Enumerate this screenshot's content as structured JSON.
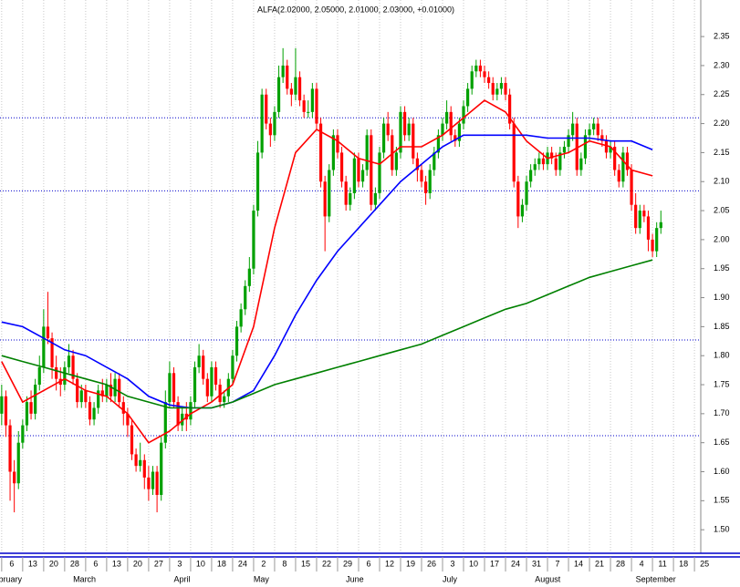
{
  "chart_data": {
    "type": "candlestick",
    "title": "ALFA(2.02000, 2.05000, 2.01000, 2.03000, +0.01000)",
    "up_color": "#00a000",
    "down_color": "#ff0000",
    "grid": true,
    "ylim": [
      1.461,
      2.413
    ],
    "xlim": [
      -0.4,
      166.5
    ],
    "yticks": [
      {
        "value": 1.5,
        "label": "1.50"
      },
      {
        "value": 1.55,
        "label": "1.55"
      },
      {
        "value": 1.6,
        "label": "1.60"
      },
      {
        "value": 1.65,
        "label": "1.65"
      },
      {
        "value": 1.7,
        "label": "1.70"
      },
      {
        "value": 1.75,
        "label": "1.75"
      },
      {
        "value": 1.8,
        "label": "1.80"
      },
      {
        "value": 1.85,
        "label": "1.85"
      },
      {
        "value": 1.9,
        "label": "1.90"
      },
      {
        "value": 1.95,
        "label": "1.95"
      },
      {
        "value": 2.0,
        "label": "2.00"
      },
      {
        "value": 2.05,
        "label": "2.05"
      },
      {
        "value": 2.1,
        "label": "2.10"
      },
      {
        "value": 2.15,
        "label": "2.15"
      },
      {
        "value": 2.2,
        "label": "2.20"
      },
      {
        "value": 2.25,
        "label": "2.25"
      },
      {
        "value": 2.3,
        "label": "2.30"
      },
      {
        "value": 2.35,
        "label": "2.35"
      }
    ],
    "xticks": [
      {
        "value": 0,
        "label": "6"
      },
      {
        "value": 5,
        "label": "13"
      },
      {
        "value": 10,
        "label": "20"
      },
      {
        "value": 15,
        "label": "28"
      },
      {
        "value": 20,
        "label": "6"
      },
      {
        "value": 25,
        "label": "13"
      },
      {
        "value": 30,
        "label": "20"
      },
      {
        "value": 35,
        "label": "27"
      },
      {
        "value": 40,
        "label": "3"
      },
      {
        "value": 45,
        "label": "10"
      },
      {
        "value": 50,
        "label": "18"
      },
      {
        "value": 55,
        "label": "24"
      },
      {
        "value": 60,
        "label": "2"
      },
      {
        "value": 65,
        "label": "8"
      },
      {
        "value": 70,
        "label": "15"
      },
      {
        "value": 75,
        "label": "22"
      },
      {
        "value": 80,
        "label": "29"
      },
      {
        "value": 85,
        "label": "6"
      },
      {
        "value": 90,
        "label": "12"
      },
      {
        "value": 95,
        "label": "19"
      },
      {
        "value": 100,
        "label": "26"
      },
      {
        "value": 105,
        "label": "3"
      },
      {
        "value": 110,
        "label": "10"
      },
      {
        "value": 115,
        "label": "17"
      },
      {
        "value": 120,
        "label": "24"
      },
      {
        "value": 125,
        "label": "31"
      },
      {
        "value": 130,
        "label": "7"
      },
      {
        "value": 135,
        "label": "14"
      },
      {
        "value": 140,
        "label": "21"
      },
      {
        "value": 145,
        "label": "28"
      },
      {
        "value": 150,
        "label": "4"
      },
      {
        "value": 155,
        "label": "11"
      },
      {
        "value": 160,
        "label": "18"
      },
      {
        "value": 165,
        "label": "25"
      }
    ],
    "month_labels": [
      {
        "value": -3,
        "label": "February"
      },
      {
        "value": 17,
        "label": "March"
      },
      {
        "value": 41,
        "label": "April"
      },
      {
        "value": 60,
        "label": "May"
      },
      {
        "value": 82,
        "label": "June"
      },
      {
        "value": 105,
        "label": "July"
      },
      {
        "value": 127,
        "label": "August"
      },
      {
        "value": 151,
        "label": "September"
      }
    ],
    "levels": {
      "color": "#0000cc",
      "values": [
        2.21,
        2.084,
        1.827,
        1.662
      ]
    },
    "candles": [
      [
        1.7,
        1.75,
        1.68,
        1.73
      ],
      [
        1.73,
        1.74,
        1.66,
        1.68
      ],
      [
        1.68,
        1.69,
        1.55,
        1.6
      ],
      [
        1.6,
        1.62,
        1.53,
        1.58
      ],
      [
        1.58,
        1.67,
        1.57,
        1.65
      ],
      [
        1.65,
        1.69,
        1.64,
        1.68
      ],
      [
        1.68,
        1.73,
        1.67,
        1.72
      ],
      [
        1.72,
        1.74,
        1.69,
        1.7
      ],
      [
        1.7,
        1.76,
        1.69,
        1.75
      ],
      [
        1.75,
        1.8,
        1.74,
        1.78
      ],
      [
        1.78,
        1.88,
        1.77,
        1.85
      ],
      [
        1.85,
        1.91,
        1.82,
        1.83
      ],
      [
        1.83,
        1.84,
        1.76,
        1.78
      ],
      [
        1.78,
        1.8,
        1.74,
        1.76
      ],
      [
        1.76,
        1.78,
        1.73,
        1.75
      ],
      [
        1.75,
        1.79,
        1.74,
        1.78
      ],
      [
        1.78,
        1.82,
        1.77,
        1.8
      ],
      [
        1.8,
        1.81,
        1.75,
        1.76
      ],
      [
        1.76,
        1.77,
        1.71,
        1.72
      ],
      [
        1.72,
        1.75,
        1.71,
        1.74
      ],
      [
        1.74,
        1.75,
        1.71,
        1.72
      ],
      [
        1.72,
        1.73,
        1.68,
        1.69
      ],
      [
        1.69,
        1.72,
        1.68,
        1.71
      ],
      [
        1.71,
        1.75,
        1.7,
        1.74
      ],
      [
        1.74,
        1.76,
        1.72,
        1.73
      ],
      [
        1.73,
        1.76,
        1.72,
        1.75
      ],
      [
        1.75,
        1.77,
        1.72,
        1.73
      ],
      [
        1.73,
        1.77,
        1.72,
        1.76
      ],
      [
        1.76,
        1.77,
        1.71,
        1.72
      ],
      [
        1.72,
        1.73,
        1.68,
        1.7
      ],
      [
        1.7,
        1.71,
        1.66,
        1.68
      ],
      [
        1.68,
        1.69,
        1.62,
        1.63
      ],
      [
        1.63,
        1.64,
        1.6,
        1.61
      ],
      [
        1.61,
        1.65,
        1.6,
        1.62
      ],
      [
        1.62,
        1.63,
        1.57,
        1.59
      ],
      [
        1.59,
        1.61,
        1.55,
        1.57
      ],
      [
        1.57,
        1.61,
        1.56,
        1.6
      ],
      [
        1.6,
        1.61,
        1.53,
        1.56
      ],
      [
        1.56,
        1.66,
        1.55,
        1.65
      ],
      [
        1.65,
        1.74,
        1.64,
        1.72
      ],
      [
        1.72,
        1.79,
        1.71,
        1.77
      ],
      [
        1.77,
        1.78,
        1.71,
        1.72
      ],
      [
        1.72,
        1.73,
        1.67,
        1.68
      ],
      [
        1.68,
        1.71,
        1.67,
        1.7
      ],
      [
        1.7,
        1.72,
        1.67,
        1.69
      ],
      [
        1.69,
        1.73,
        1.68,
        1.72
      ],
      [
        1.72,
        1.79,
        1.71,
        1.78
      ],
      [
        1.78,
        1.82,
        1.77,
        1.8
      ],
      [
        1.8,
        1.81,
        1.75,
        1.76
      ],
      [
        1.76,
        1.77,
        1.72,
        1.73
      ],
      [
        1.73,
        1.79,
        1.72,
        1.78
      ],
      [
        1.78,
        1.79,
        1.74,
        1.75
      ],
      [
        1.75,
        1.76,
        1.71,
        1.72
      ],
      [
        1.72,
        1.74,
        1.71,
        1.73
      ],
      [
        1.73,
        1.77,
        1.72,
        1.76
      ],
      [
        1.76,
        1.81,
        1.75,
        1.8
      ],
      [
        1.8,
        1.86,
        1.79,
        1.85
      ],
      [
        1.85,
        1.89,
        1.84,
        1.88
      ],
      [
        1.88,
        1.93,
        1.87,
        1.92
      ],
      [
        1.92,
        1.97,
        1.91,
        1.95
      ],
      [
        1.95,
        2.06,
        1.94,
        2.05
      ],
      [
        2.05,
        2.17,
        2.04,
        2.15
      ],
      [
        2.15,
        2.26,
        2.14,
        2.25
      ],
      [
        2.25,
        2.26,
        2.19,
        2.2
      ],
      [
        2.2,
        2.21,
        2.16,
        2.18
      ],
      [
        2.18,
        2.23,
        2.17,
        2.22
      ],
      [
        2.22,
        2.3,
        2.21,
        2.28
      ],
      [
        2.28,
        2.33,
        2.27,
        2.3
      ],
      [
        2.3,
        2.31,
        2.25,
        2.26
      ],
      [
        2.26,
        2.27,
        2.23,
        2.25
      ],
      [
        2.25,
        2.33,
        2.24,
        2.28
      ],
      [
        2.28,
        2.29,
        2.23,
        2.24
      ],
      [
        2.24,
        2.25,
        2.21,
        2.22
      ],
      [
        2.22,
        2.24,
        2.21,
        2.22
      ],
      [
        2.22,
        2.27,
        2.21,
        2.26
      ],
      [
        2.26,
        2.27,
        2.19,
        2.2
      ],
      [
        2.2,
        2.21,
        2.09,
        2.1
      ],
      [
        2.1,
        2.11,
        1.98,
        2.04
      ],
      [
        2.04,
        2.13,
        2.03,
        2.12
      ],
      [
        2.12,
        2.19,
        2.11,
        2.18
      ],
      [
        2.18,
        2.19,
        2.14,
        2.15
      ],
      [
        2.15,
        2.16,
        2.09,
        2.1
      ],
      [
        2.1,
        2.11,
        2.05,
        2.06
      ],
      [
        2.06,
        2.09,
        2.05,
        2.08
      ],
      [
        2.08,
        2.15,
        2.07,
        2.14
      ],
      [
        2.14,
        2.15,
        2.09,
        2.1
      ],
      [
        2.1,
        2.13,
        2.09,
        2.12
      ],
      [
        2.12,
        2.19,
        2.11,
        2.18
      ],
      [
        2.18,
        2.19,
        2.05,
        2.06
      ],
      [
        2.06,
        2.09,
        2.05,
        2.08
      ],
      [
        2.08,
        2.16,
        2.07,
        2.15
      ],
      [
        2.15,
        2.21,
        2.14,
        2.2
      ],
      [
        2.2,
        2.22,
        2.17,
        2.18
      ],
      [
        2.18,
        2.19,
        2.11,
        2.12
      ],
      [
        2.12,
        2.16,
        2.11,
        2.15
      ],
      [
        2.15,
        2.23,
        2.14,
        2.22
      ],
      [
        2.22,
        2.23,
        2.17,
        2.18
      ],
      [
        2.18,
        2.21,
        2.17,
        2.2
      ],
      [
        2.2,
        2.21,
        2.13,
        2.14
      ],
      [
        2.14,
        2.15,
        2.1,
        2.12
      ],
      [
        2.12,
        2.13,
        2.09,
        2.1
      ],
      [
        2.1,
        2.11,
        2.06,
        2.08
      ],
      [
        2.08,
        2.13,
        2.07,
        2.12
      ],
      [
        2.12,
        2.16,
        2.11,
        2.15
      ],
      [
        2.15,
        2.19,
        2.14,
        2.18
      ],
      [
        2.18,
        2.21,
        2.17,
        2.2
      ],
      [
        2.2,
        2.24,
        2.19,
        2.22
      ],
      [
        2.22,
        2.23,
        2.17,
        2.18
      ],
      [
        2.18,
        2.19,
        2.16,
        2.17
      ],
      [
        2.17,
        2.21,
        2.16,
        2.2
      ],
      [
        2.2,
        2.24,
        2.19,
        2.23
      ],
      [
        2.23,
        2.27,
        2.22,
        2.26
      ],
      [
        2.26,
        2.3,
        2.25,
        2.29
      ],
      [
        2.29,
        2.31,
        2.28,
        2.3
      ],
      [
        2.3,
        2.31,
        2.28,
        2.29
      ],
      [
        2.29,
        2.3,
        2.27,
        2.28
      ],
      [
        2.28,
        2.29,
        2.26,
        2.27
      ],
      [
        2.27,
        2.28,
        2.24,
        2.25
      ],
      [
        2.25,
        2.27,
        2.24,
        2.26
      ],
      [
        2.26,
        2.28,
        2.25,
        2.27
      ],
      [
        2.27,
        2.28,
        2.24,
        2.25
      ],
      [
        2.25,
        2.26,
        2.19,
        2.2
      ],
      [
        2.2,
        2.21,
        2.09,
        2.1
      ],
      [
        2.1,
        2.11,
        2.02,
        2.04
      ],
      [
        2.04,
        2.07,
        2.03,
        2.06
      ],
      [
        2.06,
        2.11,
        2.05,
        2.1
      ],
      [
        2.1,
        2.13,
        2.09,
        2.12
      ],
      [
        2.12,
        2.14,
        2.11,
        2.13
      ],
      [
        2.13,
        2.15,
        2.12,
        2.14
      ],
      [
        2.14,
        2.15,
        2.12,
        2.13
      ],
      [
        2.13,
        2.16,
        2.12,
        2.15
      ],
      [
        2.15,
        2.16,
        2.13,
        2.14
      ],
      [
        2.14,
        2.15,
        2.11,
        2.12
      ],
      [
        2.12,
        2.16,
        2.11,
        2.15
      ],
      [
        2.15,
        2.17,
        2.14,
        2.16
      ],
      [
        2.16,
        2.19,
        2.15,
        2.18
      ],
      [
        2.18,
        2.22,
        2.17,
        2.2
      ],
      [
        2.2,
        2.21,
        2.11,
        2.12
      ],
      [
        2.12,
        2.15,
        2.11,
        2.14
      ],
      [
        2.14,
        2.19,
        2.13,
        2.18
      ],
      [
        2.18,
        2.2,
        2.17,
        2.19
      ],
      [
        2.19,
        2.21,
        2.18,
        2.2
      ],
      [
        2.2,
        2.21,
        2.17,
        2.18
      ],
      [
        2.18,
        2.19,
        2.16,
        2.17
      ],
      [
        2.17,
        2.18,
        2.14,
        2.15
      ],
      [
        2.15,
        2.17,
        2.14,
        2.16
      ],
      [
        2.16,
        2.17,
        2.11,
        2.12
      ],
      [
        2.12,
        2.13,
        2.09,
        2.1
      ],
      [
        2.1,
        2.16,
        2.09,
        2.15
      ],
      [
        2.15,
        2.16,
        2.11,
        2.12
      ],
      [
        2.12,
        2.13,
        2.05,
        2.06
      ],
      [
        2.06,
        2.08,
        2.01,
        2.02
      ],
      [
        2.02,
        2.06,
        2.01,
        2.05
      ],
      [
        2.05,
        2.06,
        2.03,
        2.04
      ],
      [
        2.04,
        2.05,
        1.98,
        2.0
      ],
      [
        2.0,
        2.01,
        1.97,
        1.98
      ],
      [
        1.98,
        2.03,
        1.97,
        2.02
      ],
      [
        2.02,
        2.05,
        2.01,
        2.03
      ]
    ],
    "series": [
      {
        "color": "#ff0000",
        "x": [
          0,
          5,
          10,
          15,
          20,
          25,
          30,
          35,
          40,
          45,
          50,
          55,
          60,
          65,
          70,
          75,
          80,
          85,
          90,
          95,
          100,
          105,
          110,
          115,
          120,
          125,
          130,
          135,
          140,
          145,
          150,
          155
        ],
        "values": [
          1.79,
          1.72,
          1.74,
          1.76,
          1.74,
          1.73,
          1.7,
          1.65,
          1.67,
          1.7,
          1.72,
          1.75,
          1.85,
          2.02,
          2.15,
          2.19,
          2.17,
          2.14,
          2.13,
          2.16,
          2.16,
          2.18,
          2.21,
          2.24,
          2.22,
          2.17,
          2.14,
          2.15,
          2.17,
          2.16,
          2.12,
          2.11
        ]
      },
      {
        "color": "#0000ff",
        "x": [
          0,
          5,
          10,
          15,
          20,
          25,
          30,
          35,
          40,
          45,
          50,
          55,
          60,
          65,
          70,
          75,
          80,
          85,
          90,
          95,
          100,
          105,
          110,
          115,
          120,
          125,
          130,
          135,
          140,
          145,
          150,
          155
        ],
        "values": [
          1.858,
          1.85,
          1.83,
          1.81,
          1.8,
          1.78,
          1.76,
          1.73,
          1.715,
          1.71,
          1.71,
          1.72,
          1.74,
          1.8,
          1.87,
          1.93,
          1.98,
          2.02,
          2.06,
          2.1,
          2.13,
          2.16,
          2.18,
          2.18,
          2.18,
          2.18,
          2.175,
          2.175,
          2.175,
          2.17,
          2.17,
          2.155
        ]
      },
      {
        "color": "#008000",
        "x": [
          0,
          5,
          10,
          15,
          20,
          25,
          30,
          35,
          40,
          45,
          50,
          55,
          60,
          65,
          70,
          75,
          80,
          85,
          90,
          95,
          100,
          105,
          110,
          115,
          120,
          125,
          130,
          135,
          140,
          145,
          150,
          155
        ],
        "values": [
          1.8,
          1.79,
          1.78,
          1.77,
          1.76,
          1.75,
          1.73,
          1.72,
          1.71,
          1.71,
          1.71,
          1.72,
          1.735,
          1.75,
          1.76,
          1.77,
          1.78,
          1.79,
          1.8,
          1.81,
          1.82,
          1.835,
          1.85,
          1.865,
          1.88,
          1.89,
          1.905,
          1.92,
          1.935,
          1.945,
          1.955,
          1.965
        ]
      }
    ]
  }
}
